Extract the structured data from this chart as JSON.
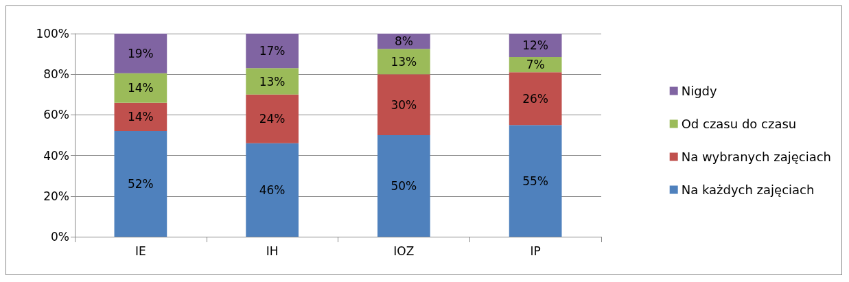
{
  "chart_data": {
    "type": "bar",
    "stacked": true,
    "categories": [
      "IE",
      "IH",
      "IOZ",
      "IP"
    ],
    "series": [
      {
        "name": "Na każdych zajęciach",
        "color": "#4f81bd",
        "values": [
          52,
          46,
          50,
          55
        ],
        "value_labels": [
          "52%",
          "46%",
          "50%",
          "55%"
        ]
      },
      {
        "name": "Na wybranych zajęciach",
        "color": "#c0504d",
        "values": [
          14,
          24,
          30,
          26
        ],
        "value_labels": [
          "14%",
          "24%",
          "30%",
          "26%"
        ]
      },
      {
        "name": "Od czasu do czasu",
        "color": "#9bbb59",
        "values": [
          14.5,
          13,
          12.5,
          7.5
        ],
        "value_labels": [
          "14%",
          "13%",
          "13%",
          "7%"
        ]
      },
      {
        "name": "Nigdy",
        "color": "#8064a2",
        "values": [
          19.5,
          17,
          7.5,
          11.5
        ],
        "value_labels": [
          "19%",
          "17%",
          "8%",
          "12%"
        ]
      }
    ],
    "ylim": [
      0,
      100
    ],
    "yticks": [
      {
        "value": 0,
        "label": "0%"
      },
      {
        "value": 20,
        "label": "20%"
      },
      {
        "value": 40,
        "label": "40%"
      },
      {
        "value": 60,
        "label": "60%"
      },
      {
        "value": 80,
        "label": "80%"
      },
      {
        "value": 100,
        "label": "100%"
      }
    ],
    "grid": "y",
    "legend": "right"
  }
}
